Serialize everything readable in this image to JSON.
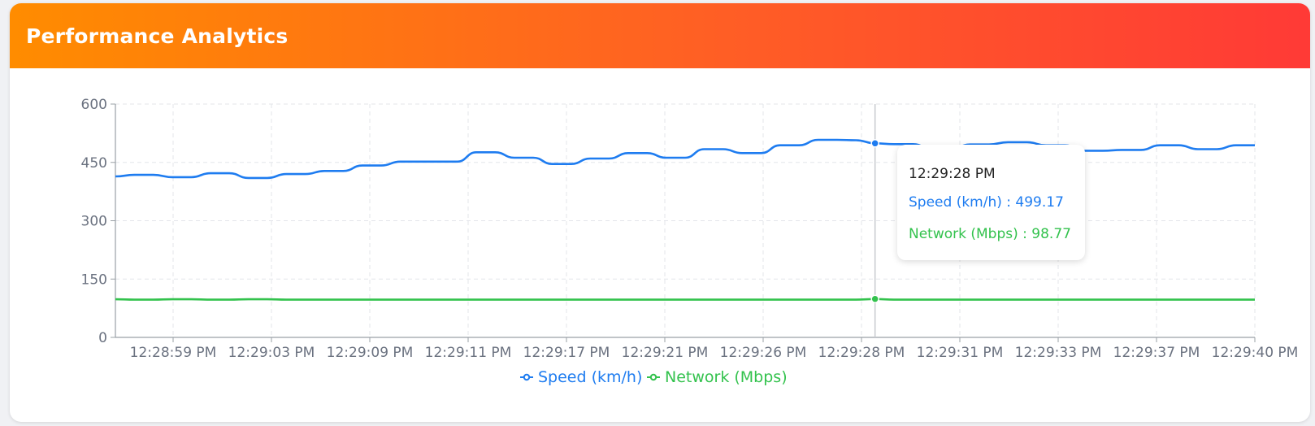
{
  "header": {
    "title": "Performance Analytics"
  },
  "colors": {
    "speed": "#1e7cf0",
    "network": "#33c24d",
    "grid": "#e3e5ea",
    "axis": "#9aa0a6",
    "tick_text": "#6b7280"
  },
  "tooltip": {
    "time": "12:29:28 PM",
    "speed": "Speed (km/h) : 499.17",
    "network": "Network (Mbps) : 98.77"
  },
  "chart_data": {
    "type": "line",
    "x_ticks": [
      "12:28:59 PM",
      "12:29:03 PM",
      "12:29:09 PM",
      "12:29:11 PM",
      "12:29:17 PM",
      "12:29:21 PM",
      "12:29:26 PM",
      "12:29:28 PM",
      "12:29:31 PM",
      "12:29:33 PM",
      "12:29:37 PM",
      "12:29:40 PM"
    ],
    "y_ticks": [
      0,
      150,
      300,
      450,
      600
    ],
    "ylim": [
      0,
      600
    ],
    "grid": true,
    "legend_placement": "bottom-center",
    "hover_index": 40,
    "series": [
      {
        "name": "Speed (km/h)",
        "values": [
          414,
          418,
          418,
          412,
          412,
          422,
          422,
          410,
          410,
          420,
          420,
          428,
          428,
          442,
          442,
          452,
          452,
          452,
          452,
          476,
          476,
          462,
          462,
          446,
          446,
          460,
          460,
          474,
          474,
          462,
          462,
          484,
          484,
          474,
          474,
          494,
          494,
          508,
          508,
          507,
          499,
          497,
          497,
          484,
          484,
          496,
          496,
          502,
          502,
          494,
          494,
          480,
          480,
          482,
          482,
          494,
          494,
          484,
          484,
          494,
          494
        ]
      },
      {
        "name": "Network (Mbps)",
        "values": [
          98,
          97,
          97,
          98,
          98,
          97,
          97,
          98,
          98,
          97,
          97,
          97,
          97,
          97,
          97,
          97,
          97,
          97,
          97,
          97,
          97,
          97,
          97,
          97,
          97,
          97,
          97,
          97,
          97,
          97,
          97,
          97,
          97,
          97,
          97,
          97,
          97,
          97,
          97,
          97,
          98.77,
          97,
          97,
          97,
          97,
          97,
          97,
          97,
          97,
          97,
          97,
          97,
          97,
          97,
          97,
          97,
          97,
          97,
          97,
          97,
          97
        ]
      }
    ]
  }
}
